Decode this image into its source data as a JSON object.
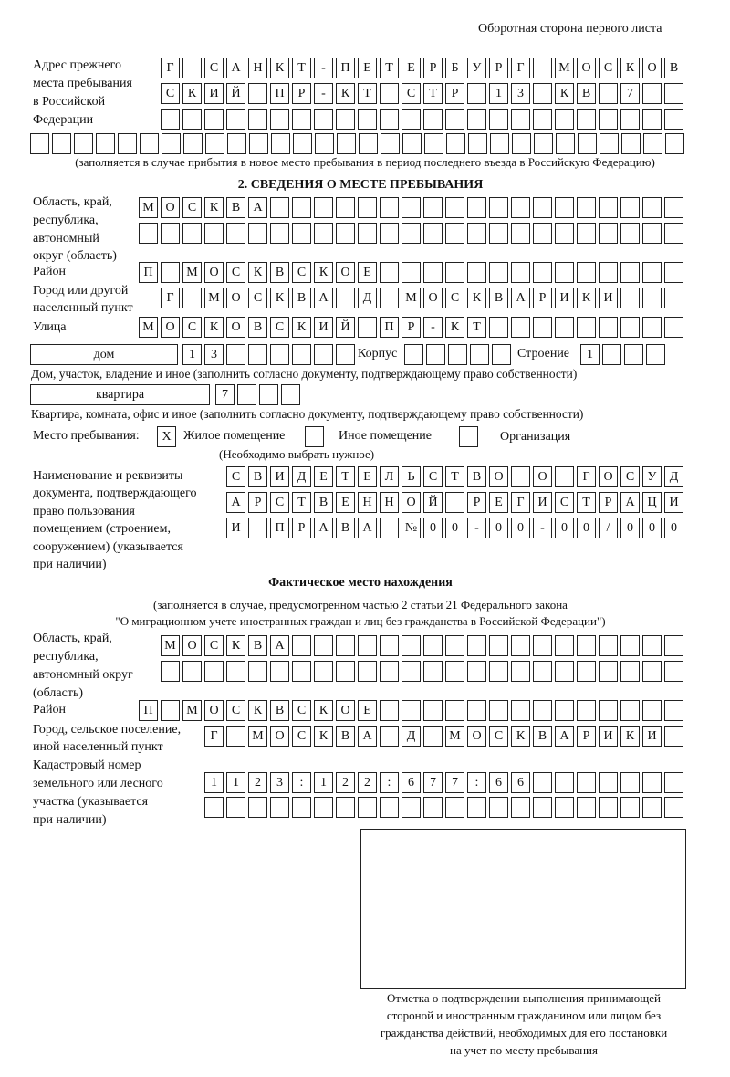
{
  "header": "Оборотная сторона первого листа",
  "prev_address": {
    "label": [
      "Адрес прежнего",
      "места пребывания",
      "в Российской",
      "Федерации"
    ],
    "rows": [
      [
        "Г",
        "",
        "С",
        "А",
        "Н",
        "К",
        "Т",
        "-",
        "П",
        "Е",
        "Т",
        "Е",
        "Р",
        "Б",
        "У",
        "Р",
        "Г",
        "",
        "М",
        "О",
        "С",
        "К",
        "О",
        "В"
      ],
      [
        "С",
        "К",
        "И",
        "Й",
        "",
        "П",
        "Р",
        "-",
        "К",
        "Т",
        "",
        "С",
        "Т",
        "Р",
        "",
        "1",
        "3",
        "",
        "К",
        "В",
        "",
        "7",
        "",
        ""
      ],
      [
        "",
        "",
        "",
        "",
        "",
        "",
        "",
        "",
        "",
        "",
        "",
        "",
        "",
        "",
        "",
        "",
        "",
        "",
        "",
        "",
        "",
        "",
        "",
        ""
      ],
      [
        "",
        "",
        "",
        "",
        "",
        "",
        "",
        "",
        "",
        "",
        "",
        "",
        "",
        "",
        "",
        "",
        "",
        "",
        "",
        "",
        "",
        "",
        "",
        "",
        "",
        "",
        "",
        "",
        "",
        ""
      ]
    ],
    "note": "(заполняется в случае прибытия в новое место пребывания в период последнего въезда в Российскую Федерацию)"
  },
  "section2": {
    "title": "2. СВЕДЕНИЯ О МЕСТЕ ПРЕБЫВАНИЯ",
    "region_label": [
      "Область, край,",
      "республика,",
      "автономный",
      "округ (область)"
    ],
    "region_rows": [
      [
        "М",
        "О",
        "С",
        "К",
        "В",
        "А",
        "",
        "",
        "",
        "",
        "",
        "",
        "",
        "",
        "",
        "",
        "",
        "",
        "",
        "",
        "",
        "",
        "",
        "",
        ""
      ],
      [
        "",
        "",
        "",
        "",
        "",
        "",
        "",
        "",
        "",
        "",
        "",
        "",
        "",
        "",
        "",
        "",
        "",
        "",
        "",
        "",
        "",
        "",
        "",
        "",
        ""
      ]
    ],
    "district_label": "Район",
    "district_row": [
      "П",
      "",
      "М",
      "О",
      "С",
      "К",
      "В",
      "С",
      "К",
      "О",
      "Е",
      "",
      "",
      "",
      "",
      "",
      "",
      "",
      "",
      "",
      "",
      "",
      "",
      "",
      ""
    ],
    "city_label": [
      "Город или другой",
      "населенный пункт"
    ],
    "city_row": [
      "Г",
      "",
      "М",
      "О",
      "С",
      "К",
      "В",
      "А",
      "",
      "Д",
      "",
      "М",
      "О",
      "С",
      "К",
      "В",
      "А",
      "Р",
      "И",
      "К",
      "И",
      "",
      "",
      ""
    ],
    "street_label": "Улица",
    "street_row": [
      "М",
      "О",
      "С",
      "К",
      "О",
      "В",
      "С",
      "К",
      "И",
      "Й",
      "",
      "П",
      "Р",
      "-",
      "К",
      "Т",
      "",
      "",
      "",
      "",
      "",
      "",
      "",
      "",
      ""
    ],
    "house_type": "дом",
    "house_cells": [
      "1",
      "3",
      "",
      "",
      "",
      "",
      "",
      ""
    ],
    "korpus_label": "Корпус",
    "korpus_cells": [
      "",
      "",
      "",
      "",
      ""
    ],
    "building_label": "Строение",
    "building_cells": [
      "1",
      "",
      "",
      ""
    ],
    "house_note": "Дом, участок, владение и иное (заполнить согласно документу, подтверждающему право собственности)",
    "apt_type": "квартира",
    "apt_cells": [
      "7",
      "",
      "",
      ""
    ],
    "apt_note": "Квартира, комната, офис и иное (заполнить согласно документу, подтверждающему право собственности)",
    "stay_label": "Место пребывания:",
    "stay_options": [
      {
        "label": "Жилое помещение",
        "mark": "X"
      },
      {
        "label": "Иное помещение",
        "mark": ""
      },
      {
        "label": "Организация",
        "mark": ""
      }
    ],
    "stay_note": "(Необходимо выбрать нужное)",
    "doc_label": [
      "Наименование и реквизиты",
      "документа, подтверждающего",
      "право пользования",
      "помещением (строением,",
      "сооружением) (указывается",
      "при наличии)"
    ],
    "doc_rows": [
      [
        "С",
        "В",
        "И",
        "Д",
        "Е",
        "Т",
        "Е",
        "Л",
        "Ь",
        "С",
        "Т",
        "В",
        "О",
        "",
        "О",
        "",
        "Г",
        "О",
        "С",
        "У",
        "Д"
      ],
      [
        "А",
        "Р",
        "С",
        "Т",
        "В",
        "Е",
        "Н",
        "Н",
        "О",
        "Й",
        "",
        "Р",
        "Е",
        "Г",
        "И",
        "С",
        "Т",
        "Р",
        "А",
        "Ц",
        "И"
      ],
      [
        "И",
        "",
        "П",
        "Р",
        "А",
        "В",
        "А",
        "",
        "№",
        "0",
        "0",
        "-",
        "0",
        "0",
        "-",
        "0",
        "0",
        "/",
        "0",
        "0",
        "0"
      ]
    ]
  },
  "actual": {
    "title": "Фактическое место нахождения",
    "note": [
      "(заполняется в случае, предусмотренном частью 2 статьи 21 Федерального закона",
      "\"О миграционном учете иностранных граждан и лиц без гражданства в Российской Федерации\")"
    ],
    "region_label": [
      "Область, край,",
      "республика,",
      "автономный округ",
      "(область)"
    ],
    "region_rows": [
      [
        "М",
        "О",
        "С",
        "К",
        "В",
        "А",
        "",
        "",
        "",
        "",
        "",
        "",
        "",
        "",
        "",
        "",
        "",
        "",
        "",
        "",
        "",
        "",
        "",
        ""
      ],
      [
        "",
        "",
        "",
        "",
        "",
        "",
        "",
        "",
        "",
        "",
        "",
        "",
        "",
        "",
        "",
        "",
        "",
        "",
        "",
        "",
        "",
        "",
        "",
        ""
      ]
    ],
    "district_label": "Район",
    "district_row": [
      "П",
      "",
      "М",
      "О",
      "С",
      "К",
      "В",
      "С",
      "К",
      "О",
      "Е",
      "",
      "",
      "",
      "",
      "",
      "",
      "",
      "",
      "",
      "",
      "",
      "",
      "",
      ""
    ],
    "city_label": [
      "Город, сельское поселение,",
      "иной населенный пункт"
    ],
    "city_row": [
      "Г",
      "",
      "М",
      "О",
      "С",
      "К",
      "В",
      "А",
      "",
      "Д",
      "",
      "М",
      "О",
      "С",
      "К",
      "В",
      "А",
      "Р",
      "И",
      "К",
      "И",
      ""
    ],
    "cadastral_label": [
      "Кадастровый номер",
      "земельного или лесного",
      "участка (указывается",
      "при наличии)"
    ],
    "cadastral_rows": [
      [
        "1",
        "1",
        "2",
        "3",
        ":",
        "1",
        "2",
        "2",
        ":",
        "6",
        "7",
        "7",
        ":",
        "6",
        "6",
        "",
        "",
        "",
        "",
        "",
        "",
        ""
      ],
      [
        "",
        "",
        "",
        "",
        "",
        "",
        "",
        "",
        "",
        "",
        "",
        "",
        "",
        "",
        "",
        "",
        "",
        "",
        "",
        "",
        "",
        ""
      ]
    ]
  },
  "stamp_caption": [
    "Отметка о подтверждении выполнения принимающей",
    "стороной и иностранным гражданином или лицом без",
    "гражданства действий, необходимых для его постановки",
    "на учет по месту пребывания"
  ]
}
